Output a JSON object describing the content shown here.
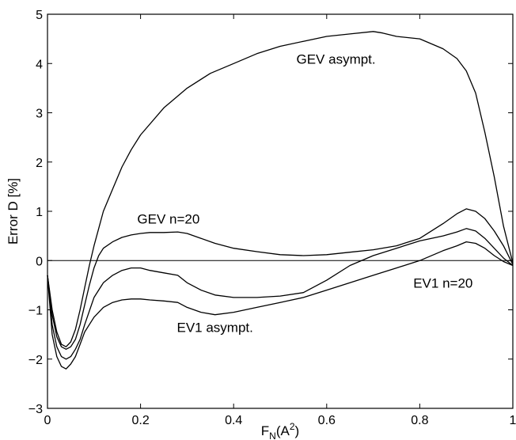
{
  "chart_data": {
    "type": "line",
    "title": "",
    "xlabel": "F_N(A^2)",
    "xlabel_main": "F",
    "xlabel_sub": "N",
    "xlabel_paren": "(A",
    "xlabel_sup": "2",
    "xlabel_close": ")",
    "ylabel": "Error D [%]",
    "xlim": [
      0,
      1
    ],
    "ylim": [
      -3,
      5
    ],
    "xticks": [
      0,
      0.2,
      0.4,
      0.6,
      0.8,
      1
    ],
    "xtick_labels": [
      "0",
      "0.2",
      "0.4",
      "0.6",
      "0.8",
      "1"
    ],
    "yticks": [
      -3,
      -2,
      -1,
      0,
      1,
      2,
      3,
      4,
      5
    ],
    "ytick_labels": [
      "−3",
      "−2",
      "−1",
      "0",
      "1",
      "2",
      "3",
      "4",
      "5"
    ],
    "grid": false,
    "reference_line": 0,
    "annotations": [
      {
        "text": "GEV asympt.",
        "x": 0.62,
        "y": 4.0
      },
      {
        "text": "GEV n=20",
        "x": 0.26,
        "y": 0.75
      },
      {
        "text": "EV1 n=20",
        "x": 0.85,
        "y": -0.55
      },
      {
        "text": "EV1 asympt.",
        "x": 0.36,
        "y": -1.45
      }
    ],
    "series": [
      {
        "x": [
          0,
          0.01,
          0.02,
          0.03,
          0.04,
          0.05,
          0.06,
          0.07,
          0.08,
          0.09,
          0.1,
          0.11,
          0.12,
          0.14,
          0.16,
          0.18,
          0.2,
          0.25,
          0.3,
          0.35,
          0.4,
          0.45,
          0.5,
          0.55,
          0.6,
          0.65,
          0.7,
          0.72,
          0.75,
          0.8,
          0.85,
          0.88,
          0.9,
          0.92,
          0.94,
          0.96,
          0.98,
          1.0
        ],
        "values": [
          -0.3,
          -1.0,
          -1.45,
          -1.7,
          -1.75,
          -1.65,
          -1.4,
          -1.0,
          -0.55,
          -0.1,
          0.3,
          0.65,
          1.0,
          1.45,
          1.9,
          2.25,
          2.55,
          3.1,
          3.5,
          3.8,
          4.0,
          4.2,
          4.35,
          4.45,
          4.55,
          4.6,
          4.65,
          4.62,
          4.55,
          4.5,
          4.3,
          4.1,
          3.85,
          3.4,
          2.6,
          1.7,
          0.7,
          -0.05
        ],
        "color": "#000000"
      },
      {
        "x": [
          0,
          0.01,
          0.02,
          0.03,
          0.04,
          0.05,
          0.06,
          0.07,
          0.08,
          0.09,
          0.1,
          0.11,
          0.12,
          0.14,
          0.16,
          0.18,
          0.2,
          0.22,
          0.25,
          0.28,
          0.3,
          0.33,
          0.36,
          0.4,
          0.45,
          0.5,
          0.55,
          0.6,
          0.65,
          0.7,
          0.75,
          0.8,
          0.85,
          0.88,
          0.9,
          0.92,
          0.94,
          0.96,
          0.98,
          1.0
        ],
        "values": [
          -0.3,
          -1.1,
          -1.55,
          -1.75,
          -1.8,
          -1.75,
          -1.6,
          -1.3,
          -0.9,
          -0.5,
          -0.15,
          0.1,
          0.25,
          0.38,
          0.47,
          0.52,
          0.55,
          0.57,
          0.57,
          0.58,
          0.55,
          0.45,
          0.35,
          0.25,
          0.18,
          0.12,
          0.1,
          0.12,
          0.17,
          0.22,
          0.3,
          0.45,
          0.75,
          0.95,
          1.05,
          1.0,
          0.85,
          0.6,
          0.3,
          -0.08
        ],
        "color": "#000000"
      },
      {
        "x": [
          0,
          0.01,
          0.02,
          0.03,
          0.04,
          0.05,
          0.06,
          0.07,
          0.08,
          0.1,
          0.12,
          0.14,
          0.16,
          0.18,
          0.2,
          0.22,
          0.25,
          0.28,
          0.3,
          0.33,
          0.36,
          0.4,
          0.45,
          0.5,
          0.55,
          0.6,
          0.65,
          0.7,
          0.75,
          0.8,
          0.85,
          0.88,
          0.9,
          0.92,
          0.94,
          0.96,
          0.98,
          1.0
        ],
        "values": [
          -0.3,
          -1.3,
          -1.75,
          -1.95,
          -2.0,
          -1.95,
          -1.8,
          -1.6,
          -1.3,
          -0.75,
          -0.45,
          -0.3,
          -0.2,
          -0.15,
          -0.15,
          -0.2,
          -0.25,
          -0.3,
          -0.45,
          -0.6,
          -0.7,
          -0.75,
          -0.75,
          -0.72,
          -0.65,
          -0.4,
          -0.1,
          0.1,
          0.25,
          0.4,
          0.5,
          0.58,
          0.65,
          0.6,
          0.45,
          0.25,
          0.05,
          -0.1
        ],
        "color": "#000000"
      },
      {
        "x": [
          0,
          0.01,
          0.02,
          0.03,
          0.04,
          0.05,
          0.06,
          0.07,
          0.08,
          0.1,
          0.12,
          0.14,
          0.16,
          0.18,
          0.2,
          0.22,
          0.25,
          0.28,
          0.3,
          0.33,
          0.36,
          0.4,
          0.45,
          0.5,
          0.55,
          0.6,
          0.65,
          0.7,
          0.75,
          0.8,
          0.85,
          0.88,
          0.9,
          0.92,
          0.94,
          0.96,
          0.98,
          1.0
        ],
        "values": [
          -0.3,
          -1.5,
          -1.95,
          -2.15,
          -2.2,
          -2.1,
          -1.95,
          -1.7,
          -1.45,
          -1.15,
          -0.95,
          -0.85,
          -0.8,
          -0.78,
          -0.78,
          -0.8,
          -0.82,
          -0.85,
          -0.95,
          -1.05,
          -1.1,
          -1.05,
          -0.95,
          -0.85,
          -0.75,
          -0.6,
          -0.45,
          -0.3,
          -0.15,
          0.0,
          0.2,
          0.3,
          0.38,
          0.35,
          0.25,
          0.1,
          -0.02,
          -0.1
        ],
        "color": "#000000"
      }
    ]
  }
}
